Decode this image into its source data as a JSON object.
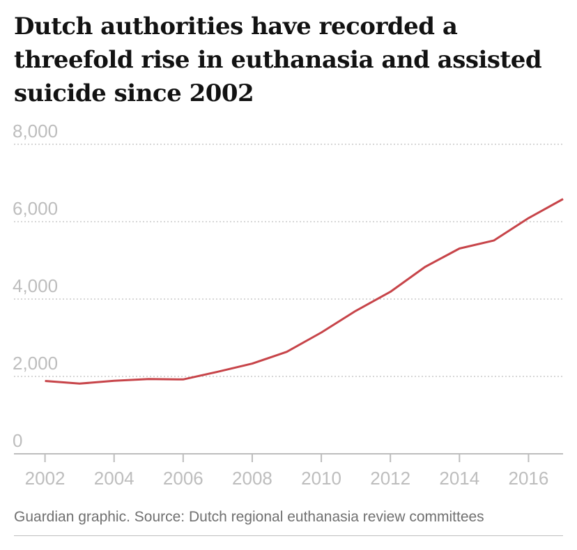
{
  "chart_data": {
    "type": "line",
    "title": "Dutch authorities have recorded a threefold rise in euthanasia and assisted suicide since 2002",
    "source": "Guardian graphic. Source: Dutch regional euthanasia review committees",
    "xlabel": "",
    "ylabel": "",
    "xlim": [
      2001.1,
      2017
    ],
    "ylim": [
      0,
      8000
    ],
    "x_ticks": [
      2002,
      2004,
      2006,
      2008,
      2010,
      2012,
      2014,
      2016
    ],
    "x_tick_labels": [
      "2002",
      "2004",
      "2006",
      "2008",
      "2010",
      "2012",
      "2014",
      "2016"
    ],
    "y_ticks": [
      0,
      2000,
      4000,
      6000,
      8000
    ],
    "y_tick_labels": [
      "0",
      "2,000",
      "4,000",
      "6,000",
      "8,000"
    ],
    "grid": "horizontal dotted",
    "line_color": "#c74449",
    "series": [
      {
        "x": [
          2002,
          2003,
          2004,
          2005,
          2006,
          2007,
          2008,
          2009,
          2010,
          2011,
          2012,
          2013,
          2014,
          2015,
          2016,
          2017
        ],
        "values": [
          1882,
          1815,
          1886,
          1933,
          1923,
          2120,
          2331,
          2636,
          3136,
          3695,
          4188,
          4829,
          5306,
          5516,
          6091,
          6585
        ]
      }
    ]
  }
}
